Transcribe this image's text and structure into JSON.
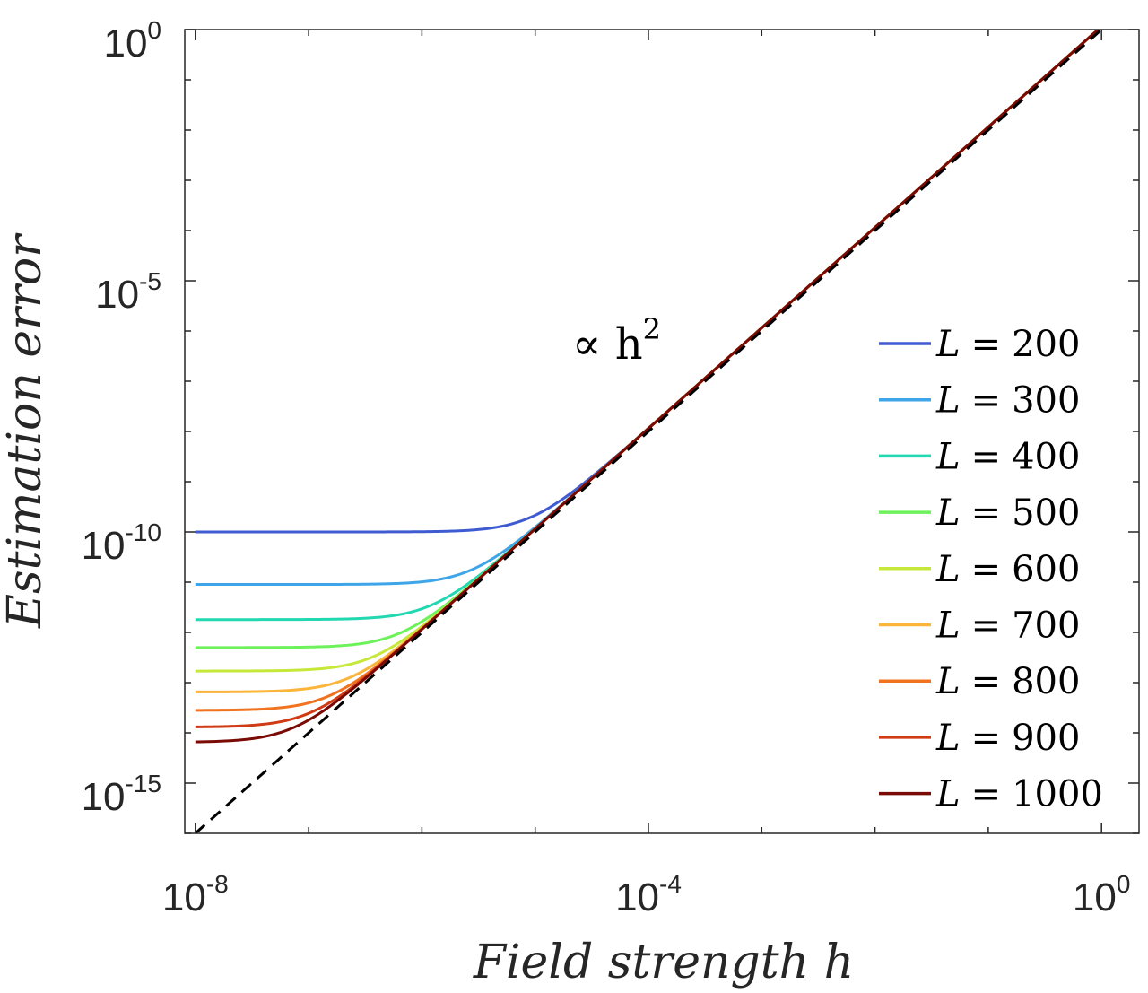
{
  "chart_data": {
    "type": "line",
    "title": "",
    "xlabel": "Field strength h",
    "ylabel": "Estimation error",
    "xscale": "log",
    "yscale": "log",
    "xlim": [
      1e-08,
      1.5
    ],
    "ylim": [
      1e-16,
      1
    ],
    "grid": false,
    "legend": "center-right",
    "x_ticks": [
      {
        "base": "10",
        "exp": "-8",
        "value": 1e-08
      },
      {
        "base": "10",
        "exp": "-4",
        "value": 0.0001
      },
      {
        "base": "10",
        "exp": "0",
        "value": 1
      }
    ],
    "y_ticks": [
      {
        "base": "10",
        "exp": "-15",
        "value": 1e-15
      },
      {
        "base": "10",
        "exp": "-10",
        "value": 1e-10
      },
      {
        "base": "10",
        "exp": "-5",
        "value": 1e-05
      },
      {
        "base": "10",
        "exp": "0",
        "value": 1
      }
    ],
    "annotation": {
      "text": "∝ h",
      "sup": "2",
      "x": 1e-05,
      "y": 1e-06
    },
    "reference_line": {
      "description": "dashed",
      "color": "#000000",
      "coef": 1.0,
      "power": 2
    },
    "series": [
      {
        "label_var": "L",
        "label_eq": "=",
        "label_val": "200",
        "color": "#3f5bd1",
        "floor": 1e-10,
        "coef": 1.15
      },
      {
        "label_var": "L",
        "label_eq": "=",
        "label_val": "300",
        "color": "#3ea6e8",
        "floor": 9e-12,
        "coef": 1.15
      },
      {
        "label_var": "L",
        "label_eq": "=",
        "label_val": "400",
        "color": "#22d8b0",
        "floor": 1.8e-12,
        "coef": 1.15
      },
      {
        "label_var": "L",
        "label_eq": "=",
        "label_val": "500",
        "color": "#6ef25c",
        "floor": 5e-13,
        "coef": 1.15
      },
      {
        "label_var": "L",
        "label_eq": "=",
        "label_val": "600",
        "color": "#c6e83a",
        "floor": 1.7e-13,
        "coef": 1.15
      },
      {
        "label_var": "L",
        "label_eq": "=",
        "label_val": "700",
        "color": "#fbb53a",
        "floor": 6.5e-14,
        "coef": 1.15
      },
      {
        "label_var": "L",
        "label_eq": "=",
        "label_val": "800",
        "color": "#f2731f",
        "floor": 2.8e-14,
        "coef": 1.15
      },
      {
        "label_var": "L",
        "label_eq": "=",
        "label_val": "900",
        "color": "#d03a14",
        "floor": 1.3e-14,
        "coef": 1.15
      },
      {
        "label_var": "L",
        "label_eq": "=",
        "label_val": "1000",
        "color": "#7a0a04",
        "floor": 6.5e-15,
        "coef": 1.15
      }
    ]
  }
}
